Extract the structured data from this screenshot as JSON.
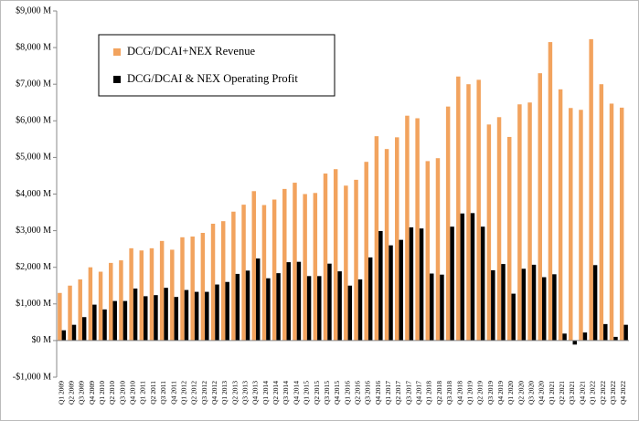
{
  "chart_data": {
    "type": "bar",
    "categories": [
      "Q1 2009",
      "Q2 2009",
      "Q3 2009",
      "Q4 2009",
      "Q1 2010",
      "Q2 2010",
      "Q3 2010",
      "Q4 2010",
      "Q1 2011",
      "Q2 2011",
      "Q3 2011",
      "Q4 2011",
      "Q1 2012",
      "Q2 2012",
      "Q3 2012",
      "Q4 2012",
      "Q1 2013",
      "Q2 2013",
      "Q3 2013",
      "Q4 2013",
      "Q1 2014",
      "Q2 2014",
      "Q3 2014",
      "Q4 2014",
      "Q1 2015",
      "Q2 2015",
      "Q3 2015",
      "Q4 2015",
      "Q1 2016",
      "Q2 2016",
      "Q3 2016",
      "Q4 2016",
      "Q1 2017",
      "Q2 2017",
      "Q3 2017",
      "Q4 2017",
      "Q1 2018",
      "Q2 2018",
      "Q3 2018",
      "Q4 2018",
      "Q1 2019",
      "Q2 2019",
      "Q3 2019",
      "Q4 2019",
      "Q1 2020",
      "Q2 2020",
      "Q3 2020",
      "Q4 2020",
      "Q1 2021",
      "Q2 2021",
      "Q3 2021",
      "Q4 2021",
      "Q1 2022",
      "Q2 2022",
      "Q3 2022",
      "Q4 2022"
    ],
    "series": [
      {
        "name": "DCG/DCAI+NEX Revenue",
        "color": "#f2a35e",
        "values": [
          1300,
          1500,
          1670,
          2000,
          1880,
          2120,
          2190,
          2520,
          2460,
          2520,
          2720,
          2480,
          2820,
          2840,
          2940,
          3190,
          3260,
          3520,
          3710,
          4080,
          3700,
          3850,
          4140,
          4310,
          4000,
          4030,
          4560,
          4680,
          4230,
          4390,
          4880,
          5580,
          5230,
          5550,
          6140,
          6070,
          4900,
          4980,
          6390,
          7210,
          7000,
          7120,
          5900,
          6100,
          5560,
          6450,
          6500,
          7300,
          8150,
          6860,
          6350,
          6300,
          8230,
          7000,
          6470,
          6360
        ]
      },
      {
        "name": "DCG/DCAI & NEX Operating Profit",
        "color": "#000000",
        "values": [
          280,
          430,
          640,
          980,
          850,
          1080,
          1080,
          1420,
          1210,
          1240,
          1440,
          1190,
          1380,
          1330,
          1330,
          1530,
          1600,
          1820,
          1910,
          2240,
          1700,
          1840,
          2140,
          2150,
          1760,
          1760,
          2100,
          1890,
          1500,
          1670,
          2270,
          2990,
          2600,
          2750,
          3090,
          3060,
          1830,
          1800,
          3110,
          3470,
          3480,
          3110,
          1920,
          2090,
          1280,
          1960,
          2070,
          1730,
          1810,
          190,
          -110,
          220,
          2060,
          450,
          100,
          430
        ]
      }
    ],
    "ylim": [
      -1000,
      9000
    ],
    "yticks": [
      {
        "value": -1000,
        "label": "-$1,000 M"
      },
      {
        "value": 0,
        "label": "$0 M"
      },
      {
        "value": 1000,
        "label": "$1,000 M"
      },
      {
        "value": 2000,
        "label": "$2,000 M"
      },
      {
        "value": 3000,
        "label": "$3,000 M"
      },
      {
        "value": 4000,
        "label": "$4,000 M"
      },
      {
        "value": 5000,
        "label": "$5,000 M"
      },
      {
        "value": 6000,
        "label": "$6,000 M"
      },
      {
        "value": 7000,
        "label": "$7,000 M"
      },
      {
        "value": 8000,
        "label": "$8,000 M"
      },
      {
        "value": 9000,
        "label": "$9,000 M"
      }
    ],
    "legend": "upper left"
  }
}
